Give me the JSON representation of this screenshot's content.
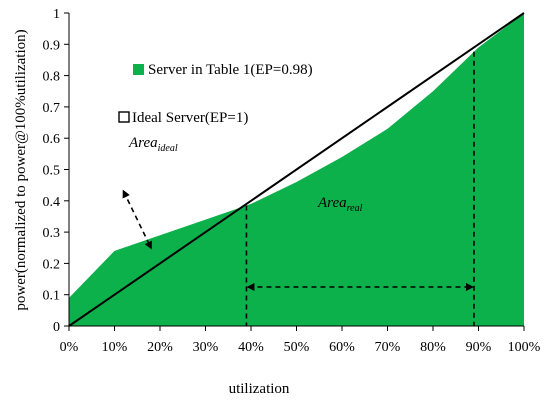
{
  "chart_data": {
    "type": "area",
    "xlabel": "utilization",
    "ylabel": "power(normalized to power@100%utilization)",
    "xlim": [
      0,
      1
    ],
    "ylim": [
      0,
      1
    ],
    "x_tick_labels": [
      "0%",
      "10%",
      "20%",
      "30%",
      "40%",
      "50%",
      "60%",
      "70%",
      "80%",
      "90%",
      "100%"
    ],
    "y_tick_labels": [
      "0",
      "0.1",
      "0.2",
      "0.3",
      "0.4",
      "0.5",
      "0.6",
      "0.7",
      "0.8",
      "0.9",
      "1"
    ],
    "grid": false,
    "series": [
      {
        "name": "Server in Table 1(EP=0.98)",
        "kind": "area",
        "color": "#0db14b",
        "x": [
          0,
          0.1,
          0.2,
          0.3,
          0.4,
          0.5,
          0.6,
          0.7,
          0.8,
          0.9,
          1.0
        ],
        "y": [
          0.09,
          0.24,
          0.29,
          0.34,
          0.39,
          0.46,
          0.54,
          0.63,
          0.75,
          0.89,
          1.0
        ]
      },
      {
        "name": "Ideal Server(EP=1)",
        "kind": "line",
        "color": "#000000",
        "x": [
          0,
          1
        ],
        "y": [
          0,
          1
        ]
      }
    ],
    "annotations": {
      "area_ideal": {
        "main": "Area",
        "sub": "ideal"
      },
      "area_real": {
        "main": "Area",
        "sub": "real"
      },
      "reference_x": [
        0.39,
        0.89
      ],
      "pointer_arrow": {
        "from": [
          0.12,
          0.43
        ],
        "to": [
          0.18,
          0.25
        ]
      }
    },
    "legend_position": "top-left"
  }
}
